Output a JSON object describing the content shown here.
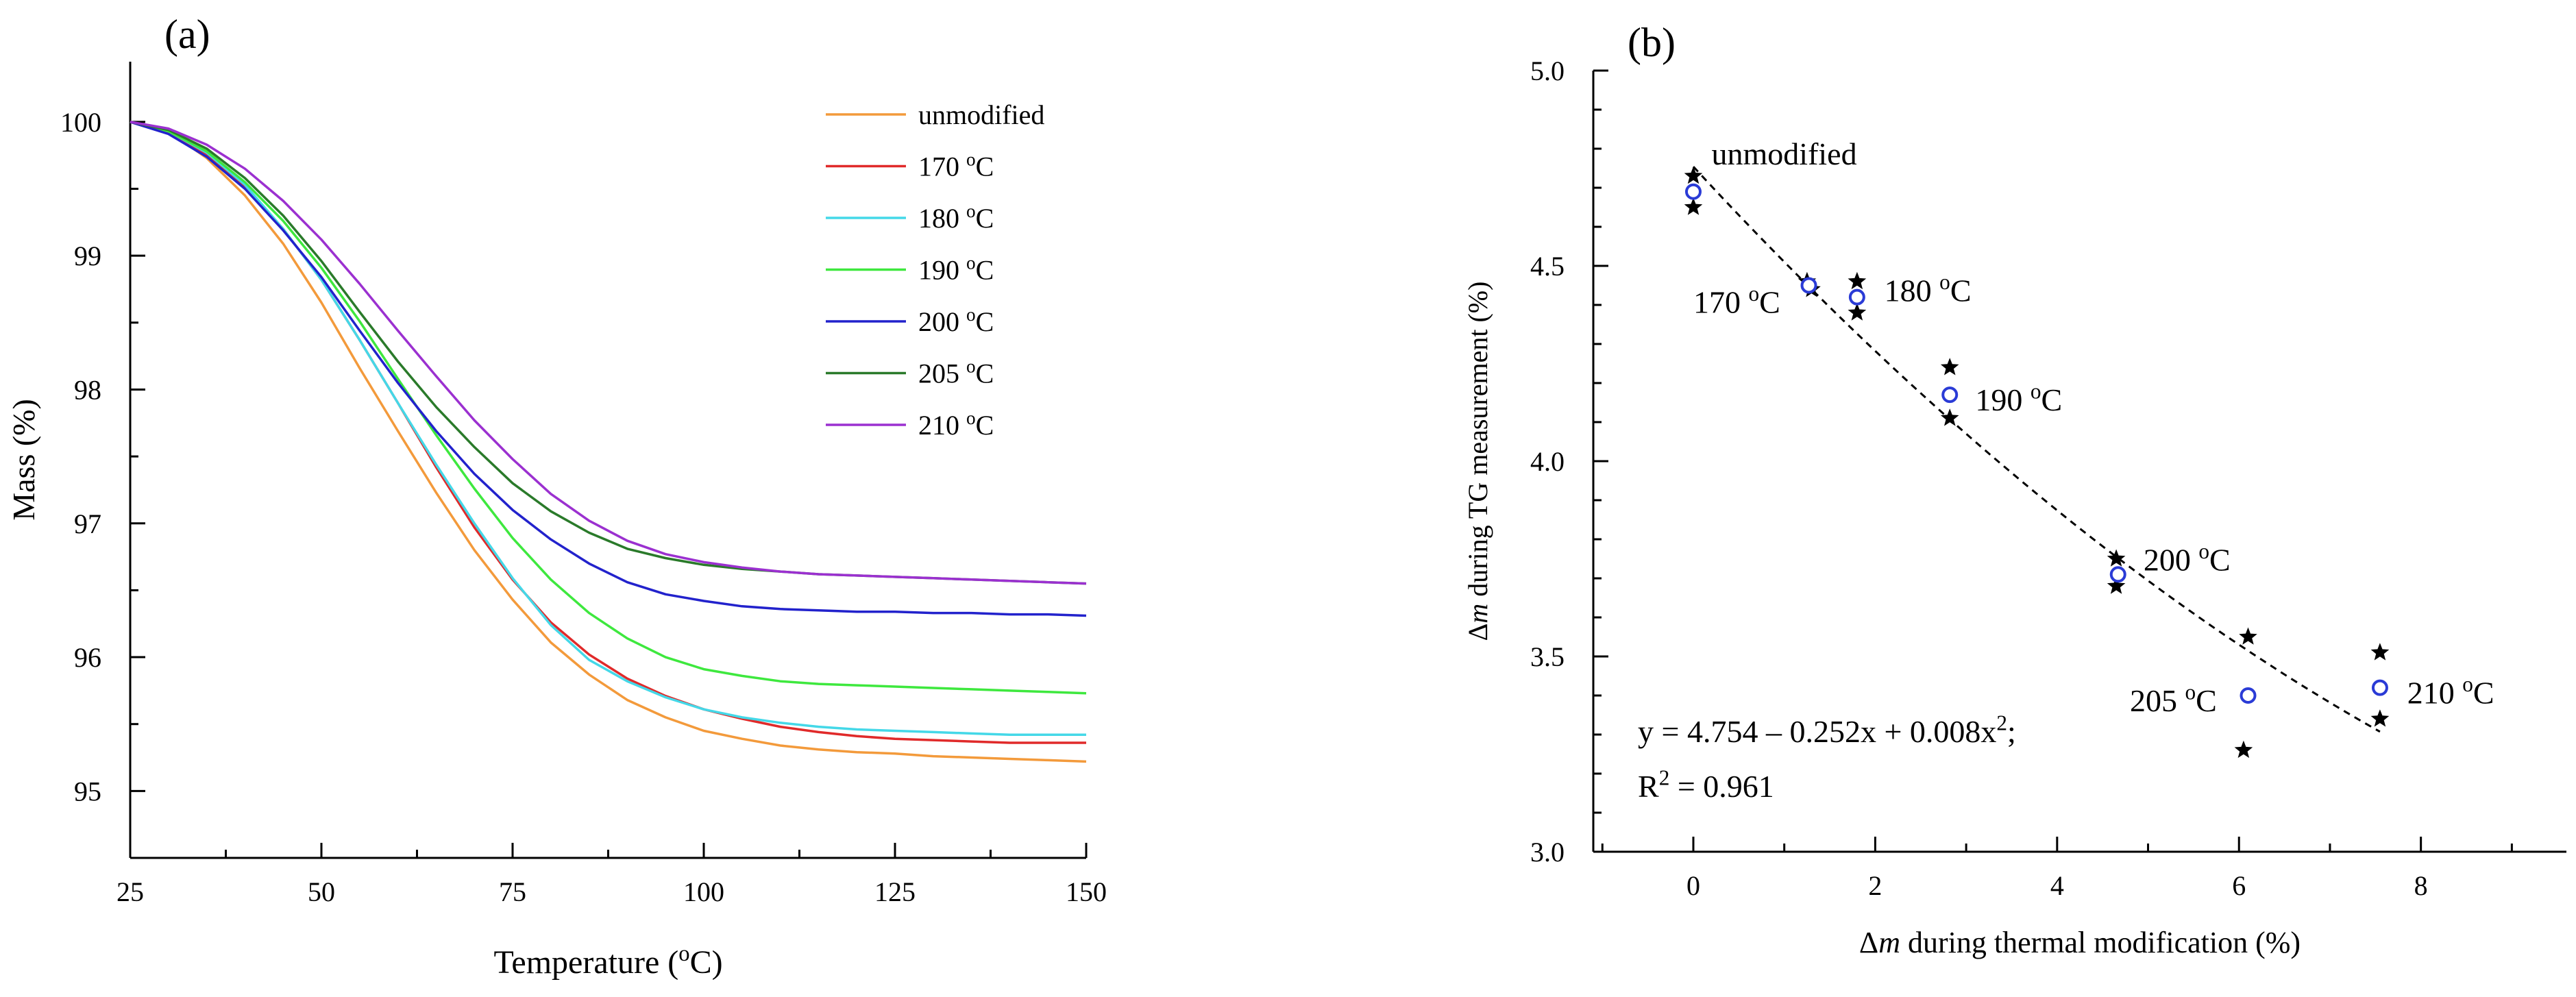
{
  "figure": {
    "panel_a_label": "(a)",
    "panel_b_label": "(b)"
  },
  "chart_data": [
    {
      "type": "line",
      "panel": "(a)",
      "title": "",
      "xlabel": "Temperature (oC)",
      "xlabel_parts": {
        "before": "Temperature (",
        "sup": "o",
        "after": "C)"
      },
      "ylabel": "Mass (%)",
      "xlim": [
        25,
        150
      ],
      "ylim": [
        94.5,
        100.45
      ],
      "xticks": [
        25,
        50,
        75,
        100,
        125,
        150
      ],
      "yticks": [
        95,
        96,
        97,
        98,
        99,
        100
      ],
      "legend_position": "top-right",
      "grid": false,
      "series": [
        {
          "name": "unmodified",
          "label_parts": {
            "before": "unmodified",
            "sup": "",
            "after": ""
          },
          "color": "#f39a3b",
          "x": [
            25,
            30,
            35,
            40,
            45,
            50,
            55,
            60,
            65,
            70,
            75,
            80,
            85,
            90,
            95,
            100,
            105,
            110,
            115,
            120,
            125,
            130,
            135,
            140,
            145,
            150
          ],
          "y": [
            100,
            99.93,
            99.73,
            99.45,
            99.09,
            98.65,
            98.16,
            97.69,
            97.23,
            96.8,
            96.43,
            96.11,
            95.87,
            95.68,
            95.55,
            95.45,
            95.39,
            95.34,
            95.31,
            95.29,
            95.28,
            95.26,
            95.25,
            95.24,
            95.23,
            95.22
          ]
        },
        {
          "name": "170 oC",
          "label_parts": {
            "before": "170 ",
            "sup": "o",
            "after": "C"
          },
          "color": "#e02a2a",
          "x": [
            25,
            30,
            35,
            40,
            45,
            50,
            55,
            60,
            65,
            70,
            75,
            80,
            85,
            90,
            95,
            100,
            105,
            110,
            115,
            120,
            125,
            130,
            135,
            140,
            145,
            150
          ],
          "y": [
            100,
            99.92,
            99.76,
            99.52,
            99.2,
            98.82,
            98.37,
            97.9,
            97.42,
            96.97,
            96.58,
            96.26,
            96.02,
            95.84,
            95.71,
            95.61,
            95.54,
            95.48,
            95.44,
            95.41,
            95.39,
            95.38,
            95.37,
            95.36,
            95.36,
            95.36
          ]
        },
        {
          "name": "180 oC",
          "label_parts": {
            "before": "180 ",
            "sup": "o",
            "after": "C"
          },
          "color": "#44d8e8",
          "x": [
            25,
            30,
            35,
            40,
            45,
            50,
            55,
            60,
            65,
            70,
            75,
            80,
            85,
            90,
            95,
            100,
            105,
            110,
            115,
            120,
            125,
            130,
            135,
            140,
            145,
            150
          ],
          "y": [
            100,
            99.93,
            99.77,
            99.53,
            99.2,
            98.82,
            98.37,
            97.9,
            97.44,
            97.0,
            96.59,
            96.24,
            95.98,
            95.82,
            95.7,
            95.61,
            95.55,
            95.51,
            95.48,
            95.46,
            95.45,
            95.44,
            95.43,
            95.42,
            95.42,
            95.42
          ]
        },
        {
          "name": "190 oC",
          "label_parts": {
            "before": "190 ",
            "sup": "o",
            "after": "C"
          },
          "color": "#3ee83e",
          "x": [
            25,
            30,
            35,
            40,
            45,
            50,
            55,
            60,
            65,
            70,
            75,
            80,
            85,
            90,
            95,
            100,
            105,
            110,
            115,
            120,
            125,
            130,
            135,
            140,
            145,
            150
          ],
          "y": [
            100,
            99.93,
            99.78,
            99.55,
            99.26,
            98.91,
            98.51,
            98.08,
            97.66,
            97.26,
            96.89,
            96.58,
            96.33,
            96.14,
            96.0,
            95.91,
            95.86,
            95.82,
            95.8,
            95.79,
            95.78,
            95.77,
            95.76,
            95.75,
            95.74,
            95.73
          ]
        },
        {
          "name": "200 oC",
          "label_parts": {
            "before": "200 ",
            "sup": "o",
            "after": "C"
          },
          "color": "#2222cc",
          "x": [
            25,
            30,
            35,
            40,
            45,
            50,
            55,
            60,
            65,
            70,
            75,
            80,
            85,
            90,
            95,
            100,
            105,
            110,
            115,
            120,
            125,
            130,
            135,
            140,
            145,
            150
          ],
          "y": [
            100,
            99.91,
            99.74,
            99.5,
            99.19,
            98.84,
            98.44,
            98.05,
            97.69,
            97.37,
            97.1,
            96.88,
            96.7,
            96.56,
            96.47,
            96.42,
            96.38,
            96.36,
            96.35,
            96.34,
            96.34,
            96.33,
            96.33,
            96.32,
            96.32,
            96.31
          ]
        },
        {
          "name": "205 oC",
          "label_parts": {
            "before": "205 ",
            "sup": "o",
            "after": "C"
          },
          "color": "#2a7a2a",
          "x": [
            25,
            30,
            35,
            40,
            45,
            50,
            55,
            60,
            65,
            70,
            75,
            80,
            85,
            90,
            95,
            100,
            105,
            110,
            115,
            120,
            125,
            130,
            135,
            140,
            145,
            150
          ],
          "y": [
            100,
            99.94,
            99.8,
            99.58,
            99.3,
            98.96,
            98.58,
            98.21,
            97.87,
            97.57,
            97.3,
            97.09,
            96.93,
            96.81,
            96.74,
            96.69,
            96.66,
            96.64,
            96.62,
            96.61,
            96.6,
            96.59,
            96.58,
            96.57,
            96.56,
            96.55
          ]
        },
        {
          "name": "210 oC",
          "label_parts": {
            "before": "210 ",
            "sup": "o",
            "after": "C"
          },
          "color": "#9b30d0",
          "x": [
            25,
            30,
            35,
            40,
            45,
            50,
            55,
            60,
            65,
            70,
            75,
            80,
            85,
            90,
            95,
            100,
            105,
            110,
            115,
            120,
            125,
            130,
            135,
            140,
            145,
            150
          ],
          "y": [
            100,
            99.95,
            99.83,
            99.65,
            99.41,
            99.12,
            98.79,
            98.44,
            98.1,
            97.77,
            97.48,
            97.22,
            97.02,
            96.87,
            96.77,
            96.71,
            96.67,
            96.64,
            96.62,
            96.61,
            96.6,
            96.59,
            96.58,
            96.57,
            96.56,
            96.55
          ]
        }
      ]
    },
    {
      "type": "scatter",
      "panel": "(b)",
      "title": "",
      "xlabel": "Δm during thermal modification (%)",
      "xlabel_parts": {
        "symbol": "Δ",
        "var": "m",
        "rest": " during thermal modification (%)"
      },
      "ylabel": "Δm during TG measurement (%)",
      "ylabel_parts": {
        "symbol": "Δ",
        "var": "m",
        "rest": " during TG measurement (%)"
      },
      "xlim": [
        -1.1,
        9.6
      ],
      "ylim": [
        3.0,
        5.0
      ],
      "xticks": [
        0,
        2,
        4,
        6,
        8
      ],
      "yticks": [
        3.0,
        3.5,
        4.0,
        4.5,
        5.0
      ],
      "ytick_labels": [
        "3.0",
        "3.5",
        "4.0",
        "4.5",
        "5.0"
      ],
      "grid": false,
      "series": [
        {
          "name": "measurements",
          "marker": "star",
          "color": "#000000",
          "points": [
            {
              "x": 0.0,
              "y": 4.73
            },
            {
              "x": 0.0,
              "y": 4.65
            },
            {
              "x": 1.25,
              "y": 4.46
            },
            {
              "x": 1.3,
              "y": 4.44
            },
            {
              "x": 1.8,
              "y": 4.46
            },
            {
              "x": 1.8,
              "y": 4.38
            },
            {
              "x": 2.82,
              "y": 4.24
            },
            {
              "x": 2.82,
              "y": 4.11
            },
            {
              "x": 4.65,
              "y": 3.75
            },
            {
              "x": 4.65,
              "y": 3.68
            },
            {
              "x": 6.1,
              "y": 3.55
            },
            {
              "x": 6.05,
              "y": 3.26
            },
            {
              "x": 7.55,
              "y": 3.51
            },
            {
              "x": 7.55,
              "y": 3.34
            }
          ]
        },
        {
          "name": "mean",
          "marker": "open-circle",
          "color": "#2a3bd6",
          "points": [
            {
              "x": 0.0,
              "y": 4.69
            },
            {
              "x": 1.27,
              "y": 4.45
            },
            {
              "x": 1.8,
              "y": 4.42
            },
            {
              "x": 2.82,
              "y": 4.17
            },
            {
              "x": 4.67,
              "y": 3.71
            },
            {
              "x": 6.1,
              "y": 3.4
            },
            {
              "x": 7.55,
              "y": 3.42
            }
          ]
        }
      ],
      "fit": {
        "type": "quadratic",
        "a": 4.754,
        "b": -0.252,
        "c": 0.008,
        "x_range": [
          0,
          7.55
        ],
        "line_style": "dashed"
      },
      "point_labels": [
        {
          "text": "unmodified",
          "before": "unmodified",
          "sup": "",
          "after": "",
          "x": 0.2,
          "y": 4.76
        },
        {
          "text": "170 oC",
          "before": "170 ",
          "sup": "o",
          "after": "C",
          "x": 0.0,
          "y": 4.38
        },
        {
          "text": "180 oC",
          "before": "180 ",
          "sup": "o",
          "after": "C",
          "x": 2.1,
          "y": 4.41
        },
        {
          "text": "190 oC",
          "before": "190 ",
          "sup": "o",
          "after": "C",
          "x": 3.1,
          "y": 4.13
        },
        {
          "text": "200 oC",
          "before": "200 ",
          "sup": "o",
          "after": "C",
          "x": 4.95,
          "y": 3.72
        },
        {
          "text": "205 oC",
          "before": "205 ",
          "sup": "o",
          "after": "C",
          "x": 4.8,
          "y": 3.36
        },
        {
          "text": "210 oC",
          "before": "210 ",
          "sup": "o",
          "after": "C",
          "x": 7.85,
          "y": 3.38
        }
      ],
      "equation": {
        "text": "y = 4.754 – 0.252x + 0.008x2;",
        "before": "y = 4.754 – 0.252x + 0.008x",
        "sup": "2",
        "after": ";"
      },
      "r_squared": {
        "text": "R2 = 0.961",
        "before": "R",
        "sup": "2",
        "after": " = 0.961"
      }
    }
  ]
}
